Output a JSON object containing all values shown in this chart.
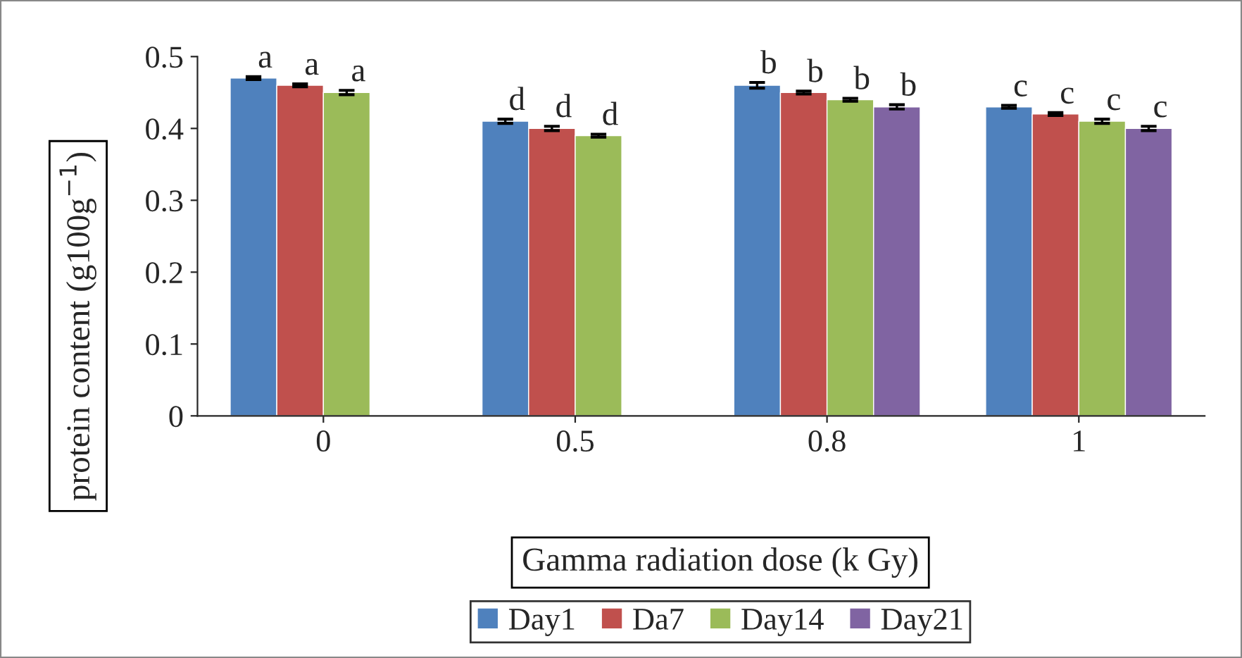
{
  "chart_data": {
    "type": "bar",
    "xlabel": "Gamma radiation dose (k Gy)",
    "ylabel": "protein content (g100g$^{−1}$)",
    "categories": [
      "0",
      "0.5",
      "0.8",
      "1"
    ],
    "series": [
      {
        "name": "Day1",
        "color": "#4f81bd",
        "values": [
          0.47,
          0.41,
          0.46,
          0.43
        ],
        "errors": [
          0.002,
          0.003,
          0.004,
          0.002
        ],
        "value_labels": [
          "a",
          "d",
          "b",
          "c"
        ]
      },
      {
        "name": "Da7",
        "color": "#c0504d",
        "values": [
          0.46,
          0.4,
          0.45,
          0.42
        ],
        "errors": [
          0.002,
          0.003,
          0.002,
          0.002
        ],
        "value_labels": [
          "a",
          "d",
          "b",
          "c"
        ]
      },
      {
        "name": "Day14",
        "color": "#9bbb59",
        "values": [
          0.45,
          0.39,
          0.44,
          0.41
        ],
        "errors": [
          0.003,
          0.002,
          0.002,
          0.003
        ],
        "value_labels": [
          "a",
          "d",
          "b",
          "c"
        ]
      },
      {
        "name": "Day21",
        "color": "#8064a2",
        "values": [
          null,
          null,
          0.43,
          0.4
        ],
        "errors": [
          null,
          null,
          0.003,
          0.003
        ],
        "value_labels": [
          null,
          null,
          "b",
          "c"
        ]
      }
    ],
    "ylim": [
      0,
      0.5
    ],
    "yticks": [
      0,
      0.1,
      0.2,
      0.3,
      0.4,
      0.5
    ],
    "grid": false,
    "legend": "bottom"
  }
}
